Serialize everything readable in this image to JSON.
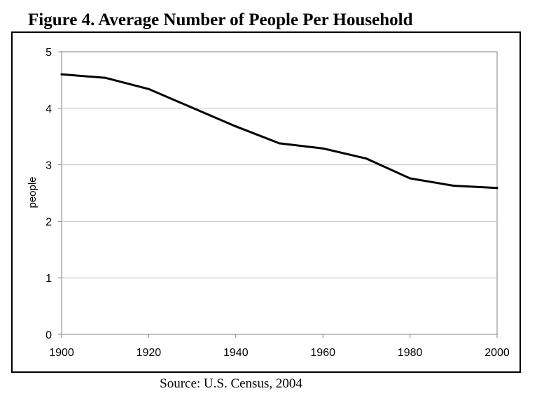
{
  "title": "Figure 4. Average Number of People Per Household",
  "source": "Source: U.S. Census, 2004",
  "colors": {
    "line": "#000000",
    "grid": "#c0c0c0",
    "frame": "#000000",
    "background": "#ffffff"
  },
  "chart_data": {
    "type": "line",
    "title": "Figure 4. Average Number of People Per Household",
    "xlabel": "",
    "ylabel": "people",
    "xlim": [
      1900,
      2000
    ],
    "ylim": [
      0,
      5
    ],
    "xticks": [
      1900,
      1920,
      1940,
      1960,
      1980,
      2000
    ],
    "yticks": [
      0,
      1,
      2,
      3,
      4,
      5
    ],
    "grid": "horizontal",
    "legend": "none",
    "series": [
      {
        "x": [
          1900,
          1910,
          1920,
          1930,
          1940,
          1950,
          1960,
          1970,
          1980,
          1990,
          2000
        ],
        "y": [
          4.6,
          4.54,
          4.34,
          4.01,
          3.68,
          3.38,
          3.29,
          3.11,
          2.76,
          2.63,
          2.59
        ]
      }
    ]
  }
}
